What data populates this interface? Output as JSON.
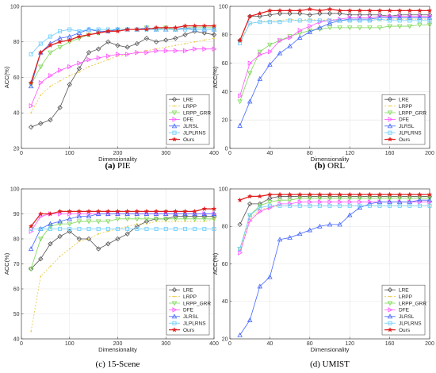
{
  "chart_data": [
    {
      "type": "line",
      "caption_letter": "(a)",
      "caption_name": "PIE",
      "xlabel": "Dimensionality",
      "ylabel": "ACC(%)",
      "xlim": [
        0,
        400
      ],
      "ylim": [
        20,
        100
      ],
      "xticks": [
        0,
        100,
        200,
        300,
        400
      ],
      "yticks": [
        20,
        40,
        60,
        80,
        100
      ],
      "legend_position": "bottom-right",
      "x": [
        20,
        40,
        60,
        80,
        100,
        120,
        140,
        160,
        180,
        200,
        220,
        240,
        260,
        280,
        300,
        320,
        340,
        360,
        380,
        400
      ],
      "series": [
        {
          "name": "LRE",
          "color": "#555555",
          "marker": "diamond",
          "dash": "",
          "values": [
            32,
            34,
            36,
            43,
            56,
            65,
            74,
            76,
            80,
            78,
            77,
            79,
            82,
            80,
            81,
            82,
            84,
            86,
            85,
            84
          ]
        },
        {
          "name": "LRPP",
          "color": "#e8c840",
          "marker": "dot",
          "dash": "2,2",
          "values": [
            40,
            50,
            55,
            58,
            61,
            63,
            66,
            68,
            70,
            72,
            73,
            74,
            75,
            76,
            77,
            78,
            79,
            80,
            81,
            82
          ]
        },
        {
          "name": "LRPP_GRR",
          "color": "#7ed957",
          "marker": "triangle-down",
          "dash": "",
          "values": [
            56,
            66,
            74,
            77,
            80,
            82,
            84,
            85,
            86,
            87,
            87,
            87,
            88,
            87,
            88,
            87,
            88,
            88,
            88,
            88
          ]
        },
        {
          "name": "DFE",
          "color": "#ff55ff",
          "marker": "triangle-right",
          "dash": "",
          "values": [
            44,
            57,
            61,
            64,
            66,
            68,
            70,
            71,
            72,
            73,
            73,
            74,
            74,
            75,
            75,
            75,
            75,
            76,
            76,
            76
          ]
        },
        {
          "name": "JLRSL",
          "color": "#4466ff",
          "marker": "triangle-up",
          "dash": "",
          "values": [
            55,
            74,
            79,
            82,
            83,
            85,
            87,
            86,
            86,
            87,
            87,
            87,
            88,
            87,
            87,
            87,
            88,
            87,
            87,
            87
          ]
        },
        {
          "name": "JLPLRNS",
          "color": "#66ccff",
          "marker": "square",
          "dash": "",
          "values": [
            73,
            79,
            83,
            86,
            87,
            86,
            87,
            87,
            87,
            87,
            87,
            87,
            87,
            87,
            87,
            87,
            87,
            87,
            87,
            87
          ]
        },
        {
          "name": "Ours",
          "color": "#e02020",
          "marker": "star",
          "dash": "",
          "values": [
            57,
            74,
            78,
            80,
            81,
            83,
            84,
            85,
            86,
            86,
            87,
            87,
            87,
            88,
            88,
            88,
            89,
            89,
            89,
            89
          ]
        }
      ]
    },
    {
      "type": "line",
      "caption_letter": "(b)",
      "caption_name": "ORL",
      "xlabel": "Dimensionality",
      "ylabel": "ACC(%)",
      "xlim": [
        0,
        200
      ],
      "ylim": [
        0,
        100
      ],
      "xticks": [
        0,
        40,
        80,
        120,
        160,
        200
      ],
      "yticks": [
        0,
        20,
        40,
        60,
        80,
        100
      ],
      "legend_position": "bottom-right",
      "x": [
        10,
        20,
        30,
        40,
        50,
        60,
        70,
        80,
        90,
        100,
        110,
        120,
        130,
        140,
        150,
        160,
        170,
        180,
        190,
        200
      ],
      "series": [
        {
          "name": "LRE",
          "color": "#555555",
          "marker": "diamond",
          "dash": "",
          "values": [
            76,
            93,
            93,
            94,
            95,
            95,
            95,
            94,
            95,
            95,
            95,
            94,
            94,
            94,
            94,
            93,
            94,
            94,
            94,
            94
          ]
        },
        {
          "name": "LRPP",
          "color": "#e8c840",
          "marker": "dot",
          "dash": "2,2",
          "values": [
            75,
            88,
            89,
            90,
            90,
            91,
            90,
            91,
            90,
            91,
            90,
            91,
            91,
            91,
            90,
            91,
            91,
            91,
            91,
            91
          ]
        },
        {
          "name": "LRPP_GRR",
          "color": "#7ed957",
          "marker": "triangle-down",
          "dash": "",
          "values": [
            33,
            53,
            68,
            73,
            76,
            79,
            81,
            83,
            84,
            85,
            85,
            85,
            85,
            85,
            85,
            86,
            86,
            86,
            87,
            87
          ]
        },
        {
          "name": "DFE",
          "color": "#ff55ff",
          "marker": "triangle-right",
          "dash": "",
          "values": [
            37,
            60,
            66,
            68,
            76,
            78,
            83,
            86,
            89,
            90,
            91,
            92,
            92,
            92,
            93,
            93,
            93,
            93,
            93,
            93
          ]
        },
        {
          "name": "JLRSL",
          "color": "#4466ff",
          "marker": "triangle-up",
          "dash": "",
          "values": [
            16,
            33,
            49,
            59,
            67,
            72,
            78,
            82,
            85,
            88,
            90,
            91,
            91,
            91,
            92,
            92,
            92,
            92,
            92,
            92
          ]
        },
        {
          "name": "JLPLRNS",
          "color": "#66ccff",
          "marker": "square",
          "dash": "",
          "values": [
            74,
            88,
            89,
            89,
            89,
            90,
            90,
            90,
            90,
            90,
            90,
            90,
            90,
            90,
            91,
            90,
            90,
            90,
            90,
            90
          ]
        },
        {
          "name": "Ours",
          "color": "#e02020",
          "marker": "star",
          "dash": "",
          "values": [
            76,
            93,
            95,
            97,
            97,
            97,
            97,
            98,
            97,
            98,
            97,
            97,
            97,
            97,
            97,
            97,
            97,
            97,
            97,
            97
          ]
        }
      ]
    },
    {
      "type": "line",
      "caption_letter": "(c)",
      "caption_name": "15-Scene",
      "xlabel": "Dimensionality",
      "ylabel": "ACC(%)",
      "xlim": [
        0,
        400
      ],
      "ylim": [
        40,
        100
      ],
      "xticks": [
        0,
        100,
        200,
        300,
        400
      ],
      "yticks": [
        40,
        50,
        60,
        70,
        80,
        90,
        100
      ],
      "legend_position": "bottom-right",
      "x": [
        20,
        40,
        60,
        80,
        100,
        120,
        140,
        160,
        180,
        200,
        220,
        240,
        260,
        280,
        300,
        320,
        340,
        360,
        380,
        400
      ],
      "series": [
        {
          "name": "LRE",
          "color": "#555555",
          "marker": "diamond",
          "dash": "",
          "values": [
            68,
            72,
            78,
            81,
            83,
            80,
            80,
            76,
            78,
            80,
            82,
            85,
            87,
            88,
            88,
            89,
            89,
            89,
            89,
            89
          ]
        },
        {
          "name": "LRPP",
          "color": "#e8c840",
          "marker": "dot",
          "dash": "2,2",
          "values": [
            43,
            65,
            69,
            73,
            76,
            79,
            80,
            82,
            83,
            84,
            85,
            86,
            86,
            87,
            87,
            87,
            87,
            87,
            87,
            88
          ]
        },
        {
          "name": "LRPP_GRR",
          "color": "#7ed957",
          "marker": "triangle-down",
          "dash": "",
          "values": [
            68,
            80,
            85,
            86,
            86,
            87,
            87,
            87,
            87,
            88,
            88,
            88,
            88,
            88,
            88,
            88,
            88,
            88,
            88,
            88
          ]
        },
        {
          "name": "DFE",
          "color": "#ff55ff",
          "marker": "triangle-right",
          "dash": "",
          "values": [
            83,
            89,
            90,
            90,
            90,
            90,
            90,
            90,
            90,
            90,
            90,
            90,
            90,
            90,
            90,
            90,
            90,
            90,
            90,
            90
          ]
        },
        {
          "name": "JLRSL",
          "color": "#4466ff",
          "marker": "triangle-up",
          "dash": "",
          "values": [
            76,
            84,
            86,
            87,
            88,
            89,
            89,
            90,
            90,
            90,
            90,
            90,
            90,
            90,
            90,
            90,
            90,
            90,
            90,
            90
          ]
        },
        {
          "name": "JLPLRNS",
          "color": "#66ccff",
          "marker": "square",
          "dash": "",
          "values": [
            84,
            84,
            84,
            84,
            84,
            84,
            84,
            84,
            84,
            84,
            84,
            84,
            84,
            84,
            84,
            84,
            84,
            84,
            84,
            84
          ]
        },
        {
          "name": "Ours",
          "color": "#e02020",
          "marker": "star",
          "dash": "",
          "values": [
            85,
            90,
            90,
            91,
            91,
            91,
            91,
            91,
            91,
            91,
            91,
            91,
            91,
            91,
            91,
            91,
            91,
            91,
            92,
            92
          ]
        }
      ]
    },
    {
      "type": "line",
      "caption_letter": "(d)",
      "caption_name": "UMIST",
      "xlabel": "Dimensionality",
      "ylabel": "ACC(%)",
      "xlim": [
        0,
        200
      ],
      "ylim": [
        20,
        100
      ],
      "xticks": [
        0,
        40,
        80,
        120,
        160,
        200
      ],
      "yticks": [
        20,
        40,
        60,
        80,
        100
      ],
      "legend_position": "bottom-right",
      "x": [
        10,
        20,
        30,
        40,
        50,
        60,
        70,
        80,
        90,
        100,
        110,
        120,
        130,
        140,
        150,
        160,
        170,
        180,
        190,
        200
      ],
      "series": [
        {
          "name": "LRE",
          "color": "#555555",
          "marker": "diamond",
          "dash": "",
          "values": [
            81,
            92,
            92,
            95,
            96,
            96,
            96,
            96,
            96,
            96,
            96,
            96,
            96,
            96,
            96,
            96,
            96,
            96,
            96,
            96
          ]
        },
        {
          "name": "LRPP",
          "color": "#e8c840",
          "marker": "dot",
          "dash": "2,2",
          "values": [
            67,
            84,
            89,
            90,
            91,
            91,
            91,
            91,
            91,
            91,
            91,
            91,
            91,
            91,
            91,
            91,
            91,
            91,
            91,
            91
          ]
        },
        {
          "name": "LRPP_GRR",
          "color": "#7ed957",
          "marker": "triangle-down",
          "dash": "",
          "values": [
            68,
            86,
            91,
            93,
            94,
            94,
            95,
            95,
            95,
            95,
            95,
            95,
            95,
            95,
            95,
            95,
            95,
            95,
            95,
            95
          ]
        },
        {
          "name": "DFE",
          "color": "#ff55ff",
          "marker": "triangle-right",
          "dash": "",
          "values": [
            66,
            83,
            88,
            90,
            92,
            92,
            93,
            93,
            93,
            93,
            93,
            93,
            93,
            93,
            93,
            93,
            93,
            93,
            93,
            93
          ]
        },
        {
          "name": "JLRSL",
          "color": "#4466ff",
          "marker": "triangle-up",
          "dash": "",
          "values": [
            22,
            30,
            48,
            53,
            73,
            74,
            76,
            78,
            80,
            81,
            81,
            86,
            90,
            92,
            93,
            93,
            93,
            93,
            94,
            94
          ]
        },
        {
          "name": "JLPLRNS",
          "color": "#66ccff",
          "marker": "square",
          "dash": "",
          "values": [
            68,
            86,
            90,
            91,
            91,
            91,
            91,
            91,
            91,
            91,
            91,
            91,
            91,
            91,
            91,
            91,
            91,
            91,
            91,
            91
          ]
        },
        {
          "name": "Ours",
          "color": "#e02020",
          "marker": "star",
          "dash": "",
          "values": [
            94,
            96,
            96,
            97,
            97,
            97,
            97,
            97,
            97,
            97,
            97,
            97,
            97,
            97,
            97,
            97,
            97,
            97,
            97,
            97
          ]
        }
      ]
    }
  ]
}
